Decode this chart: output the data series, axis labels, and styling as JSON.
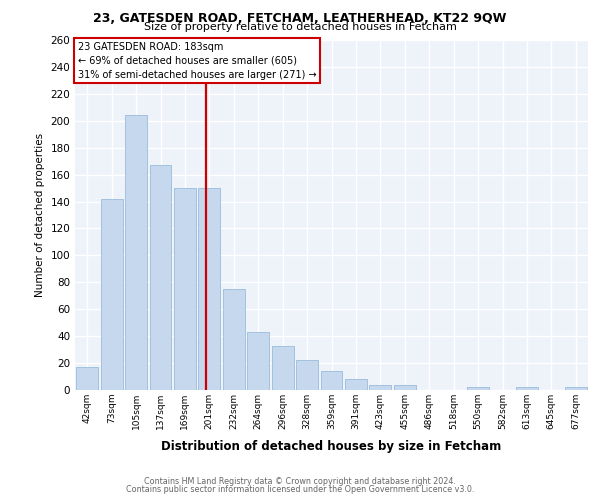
{
  "title1": "23, GATESDEN ROAD, FETCHAM, LEATHERHEAD, KT22 9QW",
  "title2": "Size of property relative to detached houses in Fetcham",
  "xlabel": "Distribution of detached houses by size in Fetcham",
  "ylabel": "Number of detached properties",
  "bar_labels": [
    "42sqm",
    "73sqm",
    "105sqm",
    "137sqm",
    "169sqm",
    "201sqm",
    "232sqm",
    "264sqm",
    "296sqm",
    "328sqm",
    "359sqm",
    "391sqm",
    "423sqm",
    "455sqm",
    "486sqm",
    "518sqm",
    "550sqm",
    "582sqm",
    "613sqm",
    "645sqm",
    "677sqm"
  ],
  "bar_values": [
    17,
    142,
    204,
    167,
    150,
    150,
    75,
    43,
    33,
    22,
    14,
    8,
    4,
    4,
    0,
    0,
    2,
    0,
    2,
    0,
    2
  ],
  "bar_color": "#c5d8ee",
  "bar_edge_color": "#8ab4d8",
  "reference_label": "23 GATESDEN ROAD: 183sqm",
  "annotation_line1": "← 69% of detached houses are smaller (605)",
  "annotation_line2": "31% of semi-detached houses are larger (271) →",
  "annotation_box_color": "#ffffff",
  "annotation_box_edge": "#cc0000",
  "ref_line_color": "#cc0000",
  "ref_line_x": 4.85,
  "ylim": [
    0,
    260
  ],
  "yticks": [
    0,
    20,
    40,
    60,
    80,
    100,
    120,
    140,
    160,
    180,
    200,
    220,
    240,
    260
  ],
  "footer1": "Contains HM Land Registry data © Crown copyright and database right 2024.",
  "footer2": "Contains public sector information licensed under the Open Government Licence v3.0.",
  "bg_color": "#eef2f9",
  "grid_color": "#ffffff",
  "title1_fontsize": 9,
  "title2_fontsize": 8
}
